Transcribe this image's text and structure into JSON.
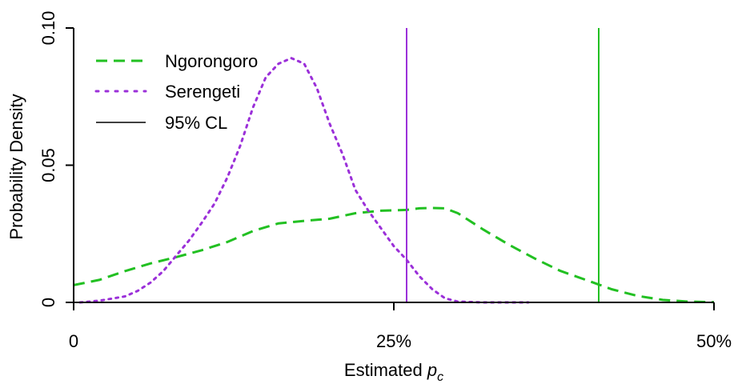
{
  "chart_data": {
    "type": "line",
    "title": "",
    "xlabel_prefix": "Estimated ",
    "xlabel_var": "p",
    "xlabel_sub": "c",
    "ylabel": "Probability Density",
    "xlim": [
      0,
      0.5
    ],
    "ylim": [
      0,
      0.1
    ],
    "x_ticks": [
      {
        "value": 0,
        "label": "0"
      },
      {
        "value": 0.25,
        "label": "25%"
      },
      {
        "value": 0.5,
        "label": "50%"
      }
    ],
    "y_ticks": [
      {
        "value": 0,
        "label": "0"
      },
      {
        "value": 0.05,
        "label": "0.05"
      },
      {
        "value": 0.1,
        "label": "0.10"
      }
    ],
    "grid": false,
    "legend_position": "top-left",
    "series": [
      {
        "name": "Ngorongoro",
        "style": "dashed",
        "color": "#22c022",
        "x": [
          0,
          0.02,
          0.04,
          0.06,
          0.08,
          0.1,
          0.12,
          0.14,
          0.16,
          0.18,
          0.2,
          0.22,
          0.24,
          0.26,
          0.27,
          0.28,
          0.29,
          0.3,
          0.32,
          0.34,
          0.36,
          0.38,
          0.4,
          0.42,
          0.44,
          0.46,
          0.48,
          0.5
        ],
        "y": [
          0.0063,
          0.0082,
          0.0114,
          0.0142,
          0.0165,
          0.019,
          0.022,
          0.026,
          0.0288,
          0.0297,
          0.0305,
          0.0325,
          0.0334,
          0.0337,
          0.0343,
          0.0344,
          0.0343,
          0.0325,
          0.0265,
          0.021,
          0.016,
          0.0115,
          0.0082,
          0.0048,
          0.0024,
          0.0009,
          0.0003,
          0.0001
        ]
      },
      {
        "name": "Serengeti",
        "style": "dotted",
        "color": "#9b30d9",
        "x": [
          0.005,
          0.02,
          0.04,
          0.05,
          0.06,
          0.07,
          0.08,
          0.09,
          0.1,
          0.11,
          0.12,
          0.13,
          0.14,
          0.15,
          0.16,
          0.17,
          0.18,
          0.19,
          0.2,
          0.21,
          0.22,
          0.23,
          0.24,
          0.25,
          0.26,
          0.27,
          0.28,
          0.29,
          0.3,
          0.32,
          0.34,
          0.355
        ],
        "y": [
          0.0,
          0.0006,
          0.0022,
          0.0042,
          0.0072,
          0.0114,
          0.017,
          0.0225,
          0.029,
          0.036,
          0.0455,
          0.057,
          0.071,
          0.082,
          0.087,
          0.089,
          0.087,
          0.078,
          0.065,
          0.054,
          0.041,
          0.0335,
          0.027,
          0.0205,
          0.0155,
          0.0095,
          0.0048,
          0.0015,
          0.0003,
          0.0,
          0.0,
          0.0
        ]
      },
      {
        "name": "95% CL",
        "style": "solid",
        "color": "#000000",
        "x": [],
        "y": []
      }
    ],
    "vertical_lines": [
      {
        "x": 0.26,
        "color": "#9b30d9"
      },
      {
        "x": 0.41,
        "color": "#22c022"
      }
    ]
  }
}
